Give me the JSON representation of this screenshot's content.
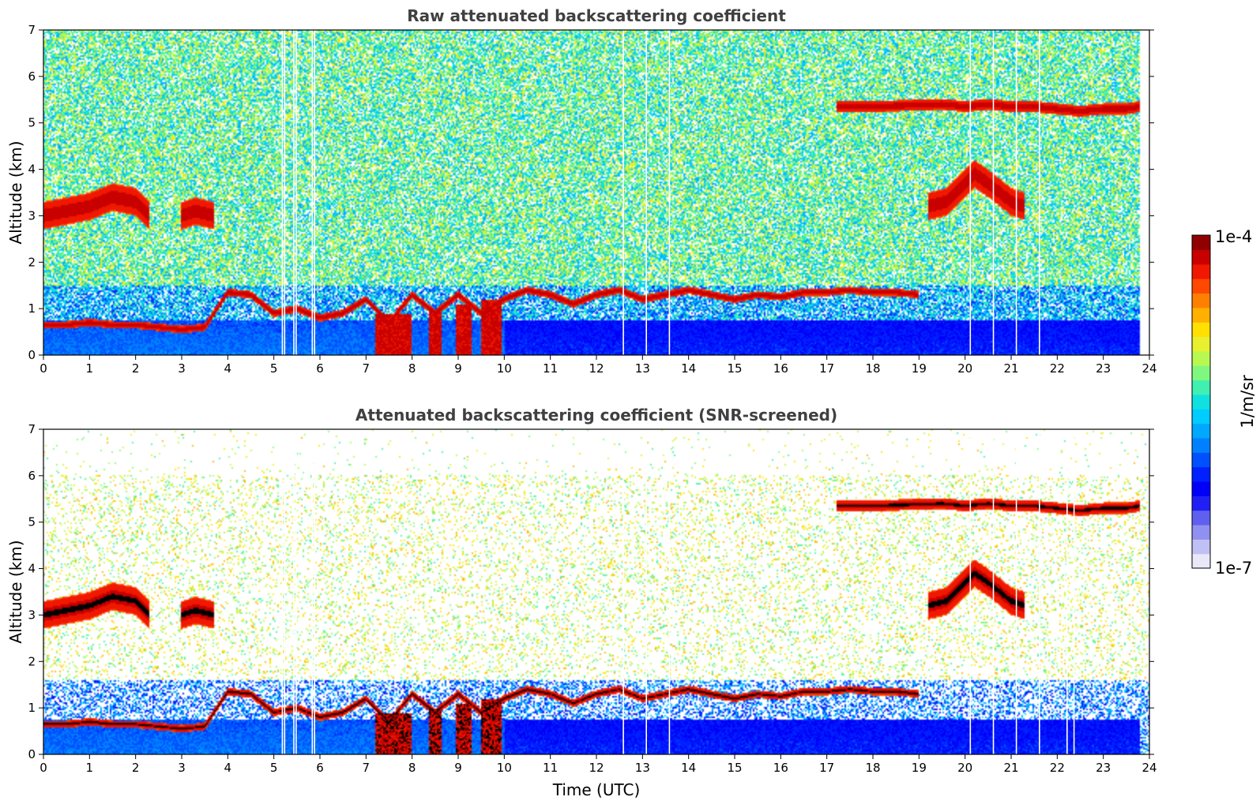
{
  "colorbar": {
    "max_label": "1e-4",
    "min_label": "1e-7",
    "unit_label": "1/m/sr",
    "colors": [
      "#e8e8f8",
      "#c0c0f4",
      "#9090f0",
      "#6060f0",
      "#2020f4",
      "#0000f8",
      "#0020ff",
      "#0050ff",
      "#0080ff",
      "#00a8ff",
      "#00ccff",
      "#10e0e0",
      "#40f0b0",
      "#80f880",
      "#b8f850",
      "#e8f030",
      "#ffe000",
      "#ffb000",
      "#ff8000",
      "#ff4800",
      "#f01800",
      "#c80000",
      "#900000"
    ]
  },
  "chart_data": [
    {
      "type": "heatmap",
      "title": "Raw attenuated backscattering coefficient",
      "xlabel": "",
      "ylabel": "Altitude (km)",
      "xlim": [
        0,
        24
      ],
      "ylim": [
        0,
        7
      ],
      "x_ticks": [
        "0",
        "1",
        "2",
        "3",
        "4",
        "5",
        "6",
        "7",
        "8",
        "9",
        "10",
        "11",
        "12",
        "13",
        "14",
        "15",
        "16",
        "17",
        "18",
        "19",
        "20",
        "21",
        "22",
        "23",
        "24"
      ],
      "y_ticks": [
        "0",
        "1",
        "2",
        "3",
        "4",
        "5",
        "6",
        "7"
      ],
      "color_scale": "log",
      "vmin": 1e-07,
      "vmax": 0.0001,
      "background": "noisy",
      "data_gaps_hours": [
        5.17,
        5.22,
        5.42,
        5.47,
        5.82,
        5.87,
        12.57,
        13.07,
        13.57,
        20.1,
        20.6,
        21.1,
        21.6
      ],
      "cloud_layers": [
        {
          "label": "low cloud layer",
          "time": [
            0.0,
            0.5,
            1.0,
            1.5,
            2.0,
            2.5,
            3.0,
            3.5,
            4.0,
            4.5,
            5.0,
            5.5,
            6.0,
            6.5,
            7.0,
            7.5,
            8.0,
            8.5,
            9.0,
            9.5,
            10.0,
            10.5,
            11.0,
            11.5,
            12.0,
            12.5,
            13.0,
            13.5,
            14.0,
            14.5,
            15.0,
            15.5,
            16.0,
            16.5,
            17.0,
            17.5,
            18.0,
            18.5,
            19.0
          ],
          "altitude": [
            0.65,
            0.65,
            0.7,
            0.65,
            0.65,
            0.6,
            0.55,
            0.6,
            1.35,
            1.3,
            0.9,
            1.0,
            0.8,
            0.9,
            1.2,
            0.7,
            1.3,
            0.9,
            1.3,
            0.9,
            1.2,
            1.4,
            1.3,
            1.1,
            1.3,
            1.4,
            1.2,
            1.3,
            1.4,
            1.3,
            1.2,
            1.3,
            1.25,
            1.35,
            1.35,
            1.4,
            1.35,
            1.35,
            1.3
          ]
        },
        {
          "label": "mid cloud layer",
          "time": [
            0.0,
            0.5,
            1.0,
            1.5,
            2.0,
            2.3
          ],
          "altitude": [
            3.0,
            3.1,
            3.2,
            3.4,
            3.3,
            3.0
          ]
        },
        {
          "label": "mid cloud layer 2",
          "time": [
            3.0,
            3.3,
            3.7
          ],
          "altitude": [
            3.0,
            3.1,
            3.0
          ]
        },
        {
          "label": "mid cloud layer 3",
          "time": [
            19.2,
            19.6,
            20.2,
            20.5,
            21.0,
            21.3
          ],
          "altitude": [
            3.2,
            3.3,
            3.9,
            3.7,
            3.3,
            3.2
          ]
        },
        {
          "label": "high cloud layer",
          "time": [
            17.2,
            17.6,
            18.0,
            19.5,
            20.0,
            20.5,
            21.0,
            21.5,
            22.0,
            22.5,
            23.0,
            23.5,
            23.8
          ],
          "altitude": [
            5.35,
            5.35,
            5.35,
            5.4,
            5.35,
            5.4,
            5.35,
            5.35,
            5.3,
            5.25,
            5.3,
            5.3,
            5.35
          ]
        }
      ],
      "precipitation_columns": [
        {
          "time": [
            7.2,
            8.0
          ],
          "top_altitude": 0.9
        },
        {
          "time": [
            8.35,
            8.65
          ],
          "top_altitude": 1.0
        },
        {
          "time": [
            8.95,
            9.3
          ],
          "top_altitude": 1.1
        },
        {
          "time": [
            9.5,
            9.95
          ],
          "top_altitude": 1.2
        }
      ]
    },
    {
      "type": "heatmap",
      "title": "Attenuated backscattering coefficient (SNR-screened)",
      "xlabel": "Time (UTC)",
      "ylabel": "Altitude (km)",
      "xlim": [
        0,
        24
      ],
      "ylim": [
        0,
        7
      ],
      "x_ticks": [
        "0",
        "1",
        "2",
        "3",
        "4",
        "5",
        "6",
        "7",
        "8",
        "9",
        "10",
        "11",
        "12",
        "13",
        "14",
        "15",
        "16",
        "17",
        "18",
        "19",
        "20",
        "21",
        "22",
        "23",
        "24"
      ],
      "y_ticks": [
        "0",
        "1",
        "2",
        "3",
        "4",
        "5",
        "6",
        "7"
      ],
      "color_scale": "log",
      "vmin": 1e-07,
      "vmax": 0.0001,
      "background": "screened",
      "saturated_color": "#000000",
      "data_gaps_hours": [
        5.17,
        5.22,
        5.42,
        5.47,
        5.82,
        5.87,
        12.57,
        13.07,
        13.57,
        20.1,
        20.6,
        21.1,
        21.6,
        22.2,
        22.35
      ],
      "cloud_layers": [
        {
          "label": "low cloud layer",
          "time": [
            0.0,
            0.5,
            1.0,
            1.5,
            2.0,
            2.5,
            3.0,
            3.5,
            4.0,
            4.5,
            5.0,
            5.5,
            6.0,
            6.5,
            7.0,
            7.5,
            8.0,
            8.5,
            9.0,
            9.5,
            10.0,
            10.5,
            11.0,
            11.5,
            12.0,
            12.5,
            13.0,
            13.5,
            14.0,
            14.5,
            15.0,
            15.5,
            16.0,
            16.5,
            17.0,
            17.5,
            18.0,
            18.5,
            19.0
          ],
          "altitude": [
            0.65,
            0.65,
            0.7,
            0.65,
            0.65,
            0.6,
            0.55,
            0.6,
            1.35,
            1.3,
            0.9,
            1.0,
            0.8,
            0.9,
            1.2,
            0.7,
            1.3,
            0.9,
            1.3,
            0.9,
            1.2,
            1.4,
            1.3,
            1.1,
            1.3,
            1.4,
            1.2,
            1.3,
            1.4,
            1.3,
            1.2,
            1.3,
            1.25,
            1.35,
            1.35,
            1.4,
            1.35,
            1.35,
            1.3
          ]
        },
        {
          "label": "mid cloud layer",
          "time": [
            0.0,
            0.5,
            1.0,
            1.5,
            2.0,
            2.3
          ],
          "altitude": [
            3.0,
            3.1,
            3.2,
            3.4,
            3.3,
            3.0
          ]
        },
        {
          "label": "mid cloud layer 2",
          "time": [
            3.0,
            3.3,
            3.7
          ],
          "altitude": [
            3.0,
            3.1,
            3.0
          ]
        },
        {
          "label": "mid cloud layer 3",
          "time": [
            19.2,
            19.6,
            20.2,
            20.5,
            21.0,
            21.3
          ],
          "altitude": [
            3.2,
            3.3,
            3.9,
            3.7,
            3.3,
            3.2
          ]
        },
        {
          "label": "high cloud layer",
          "time": [
            17.2,
            17.6,
            18.0,
            19.5,
            20.0,
            20.5,
            21.0,
            21.5,
            22.0,
            22.5,
            23.0,
            23.5,
            23.8
          ],
          "altitude": [
            5.35,
            5.35,
            5.35,
            5.4,
            5.35,
            5.4,
            5.35,
            5.35,
            5.3,
            5.25,
            5.3,
            5.3,
            5.35
          ]
        }
      ],
      "precipitation_columns": [
        {
          "time": [
            7.2,
            8.0
          ],
          "top_altitude": 0.9
        },
        {
          "time": [
            8.35,
            8.65
          ],
          "top_altitude": 1.0
        },
        {
          "time": [
            8.95,
            9.3
          ],
          "top_altitude": 1.1
        },
        {
          "time": [
            9.5,
            9.95
          ],
          "top_altitude": 1.2
        }
      ]
    }
  ]
}
